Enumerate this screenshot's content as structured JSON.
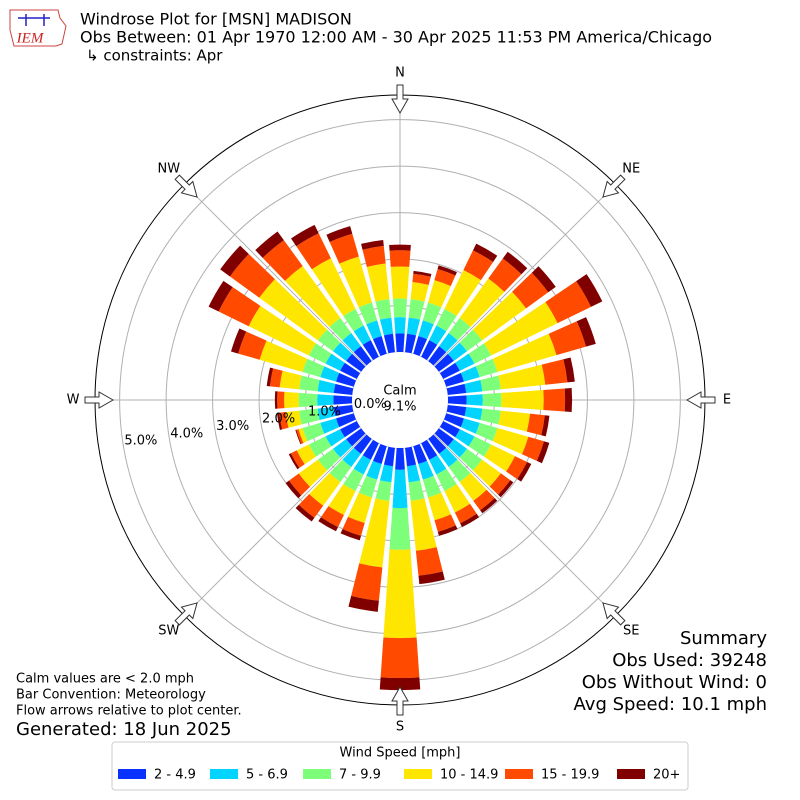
{
  "chart_data": {
    "type": "windrose",
    "logo_text": "IEM",
    "title": "Windrose Plot for [MSN] MADISON",
    "subtitle": "Obs Between: 01 Apr 1970 12:00 AM - 30 Apr 2025 11:53 PM America/Chicago",
    "constraints": "↳ constraints: Apr",
    "calm_label": "Calm",
    "calm_value": "9.1%",
    "direction_labels": [
      "N",
      "NE",
      "E",
      "SE",
      "S",
      "SW",
      "W",
      "NW"
    ],
    "categories": [
      null,
      null,
      null,
      null,
      null,
      null,
      null,
      null,
      null,
      null,
      null,
      null,
      null,
      null,
      null,
      null,
      null,
      null,
      null,
      null,
      null,
      null,
      null,
      null,
      null,
      null,
      null,
      null,
      null,
      null,
      null,
      null,
      null,
      null,
      null,
      null
    ],
    "rlim": [
      0,
      5.53
    ],
    "rticks": [
      {
        "value": 0,
        "label": "0.0%"
      },
      {
        "value": 1,
        "label": "1.0%"
      },
      {
        "value": 2,
        "label": "2.0%"
      },
      {
        "value": 3,
        "label": "3.0%"
      },
      {
        "value": 4,
        "label": "4.0%"
      },
      {
        "value": 5,
        "label": "5.0%"
      }
    ],
    "grid": true,
    "legend_title": "Wind Speed [mph]",
    "series": [
      {
        "name": "2 - 4.9",
        "color": "#0a32ff",
        "values": [
          0.4,
          0.4,
          0.4,
          0.4,
          0.4,
          0.4,
          0.4,
          0.4,
          0.4,
          0.4,
          0.4,
          0.4,
          0.4,
          0.4,
          0.4,
          0.4,
          0.4,
          0.4,
          0.47,
          0.4,
          0.4,
          0.4,
          0.4,
          0.4,
          0.4,
          0.4,
          0.4,
          0.4,
          0.4,
          0.4,
          0.4,
          0.4,
          0.4,
          0.4,
          0.4,
          0.4
        ]
      },
      {
        "name": "5 - 6.9",
        "color": "#00d4ff",
        "values": [
          0.35,
          0.35,
          0.35,
          0.35,
          0.35,
          0.35,
          0.35,
          0.35,
          0.35,
          0.35,
          0.35,
          0.35,
          0.35,
          0.35,
          0.35,
          0.35,
          0.35,
          0.35,
          0.82,
          0.35,
          0.35,
          0.35,
          0.35,
          0.35,
          0.35,
          0.35,
          0.35,
          0.35,
          0.35,
          0.35,
          0.35,
          0.35,
          0.35,
          0.35,
          0.35,
          0.35
        ]
      },
      {
        "name": "7 - 9.9",
        "color": "#7dff7a",
        "values": [
          0.4,
          0.4,
          0.4,
          0.4,
          0.4,
          0.4,
          0.4,
          0.4,
          0.4,
          0.4,
          0.4,
          0.4,
          0.4,
          0.4,
          0.4,
          0.4,
          0.4,
          0.4,
          0.9,
          0.4,
          0.4,
          0.4,
          0.4,
          0.4,
          0.4,
          0.4,
          0.4,
          0.4,
          0.4,
          0.4,
          0.4,
          0.4,
          0.4,
          0.4,
          0.4,
          0.4
        ]
      },
      {
        "name": "10 - 14.9",
        "color": "#ffe600",
        "values": [
          0.69,
          0.37,
          0.5,
          0.93,
          1.05,
          1.17,
          1.59,
          1.32,
          0.96,
          0.91,
          0.63,
          0.69,
          0.57,
          0.5,
          0.5,
          0.51,
          0.51,
          1.08,
          1.9,
          1.44,
          0.57,
          0.57,
          0.63,
          0.51,
          0.29,
          0.09,
          0.29,
          0.31,
          0.42,
          0.96,
          1.44,
          1.56,
          1.38,
          1.21,
          1.03,
          0.77
        ]
      },
      {
        "name": "15 - 19.9",
        "color": "#ff4a00",
        "values": [
          0.35,
          0.18,
          0.25,
          0.47,
          0.53,
          0.59,
          0.8,
          0.66,
          0.48,
          0.46,
          0.32,
          0.35,
          0.29,
          0.25,
          0.25,
          0.26,
          0.26,
          0.54,
          0.86,
          0.72,
          0.29,
          0.29,
          0.32,
          0.26,
          0.14,
          0.05,
          0.14,
          0.15,
          0.21,
          0.48,
          0.72,
          0.78,
          0.69,
          0.6,
          0.51,
          0.38
        ]
      },
      {
        "name": "20+",
        "color": "#800000",
        "values": [
          0.12,
          0.06,
          0.08,
          0.16,
          0.18,
          0.2,
          0.27,
          0.22,
          0.16,
          0.15,
          0.1,
          0.12,
          0.1,
          0.08,
          0.08,
          0.09,
          0.09,
          0.18,
          0.26,
          0.24,
          0.1,
          0.1,
          0.1,
          0.09,
          0.05,
          0.02,
          0.05,
          0.05,
          0.07,
          0.16,
          0.24,
          0.26,
          0.23,
          0.2,
          0.17,
          0.13
        ]
      }
    ],
    "notes": [
      "Calm values are < 2.0 mph",
      "Bar Convention: Meteorology",
      "Flow arrows relative to plot center."
    ],
    "generated": "Generated: 18 Jun 2025",
    "summary": [
      "Summary",
      "Obs Used: 39248",
      "Obs Without Wind: 0",
      "Avg Speed: 10.1 mph"
    ]
  }
}
